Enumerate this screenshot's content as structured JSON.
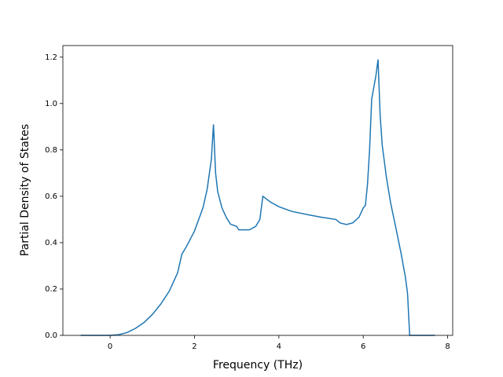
{
  "chart_data": {
    "type": "line",
    "xlabel": "Frequency (THz)",
    "ylabel": "Partial Density of States",
    "x": [
      -0.7,
      0,
      0.2,
      0.4,
      0.6,
      0.8,
      1.0,
      1.2,
      1.4,
      1.6,
      1.7,
      1.8,
      2.0,
      2.2,
      2.3,
      2.4,
      2.45,
      2.5,
      2.55,
      2.65,
      2.75,
      2.85,
      3.0,
      3.05,
      3.3,
      3.45,
      3.55,
      3.62,
      3.8,
      4.0,
      4.3,
      4.7,
      5.0,
      5.35,
      5.45,
      5.6,
      5.75,
      5.9,
      6.0,
      6.05,
      6.1,
      6.15,
      6.2,
      6.3,
      6.35,
      6.4,
      6.45,
      6.55,
      6.65,
      6.8,
      6.9,
      7.0,
      7.05,
      7.1,
      7.7
    ],
    "series": [
      {
        "color": "#1f77b4",
        "values": [
          0,
          0,
          0.003,
          0.012,
          0.03,
          0.055,
          0.09,
          0.135,
          0.19,
          0.27,
          0.35,
          0.38,
          0.45,
          0.55,
          0.63,
          0.76,
          0.91,
          0.7,
          0.62,
          0.55,
          0.51,
          0.48,
          0.47,
          0.455,
          0.455,
          0.47,
          0.5,
          0.6,
          0.575,
          0.555,
          0.535,
          0.52,
          0.51,
          0.5,
          0.485,
          0.478,
          0.485,
          0.51,
          0.55,
          0.56,
          0.65,
          0.8,
          1.02,
          1.12,
          1.19,
          0.95,
          0.82,
          0.68,
          0.57,
          0.44,
          0.35,
          0.25,
          0.18,
          0,
          0
        ]
      }
    ],
    "xlim": [
      -1.12,
      8.12
    ],
    "ylim": [
      0,
      1.25
    ],
    "xticks": [
      0,
      2,
      4,
      6,
      8
    ],
    "yticks": [
      {
        "value": 0,
        "label": "0.0"
      },
      0.2,
      0.4,
      0.6,
      0.8,
      {
        "value": 1,
        "label": "1.0"
      },
      {
        "value": 1.2,
        "label": "1.2"
      }
    ]
  }
}
